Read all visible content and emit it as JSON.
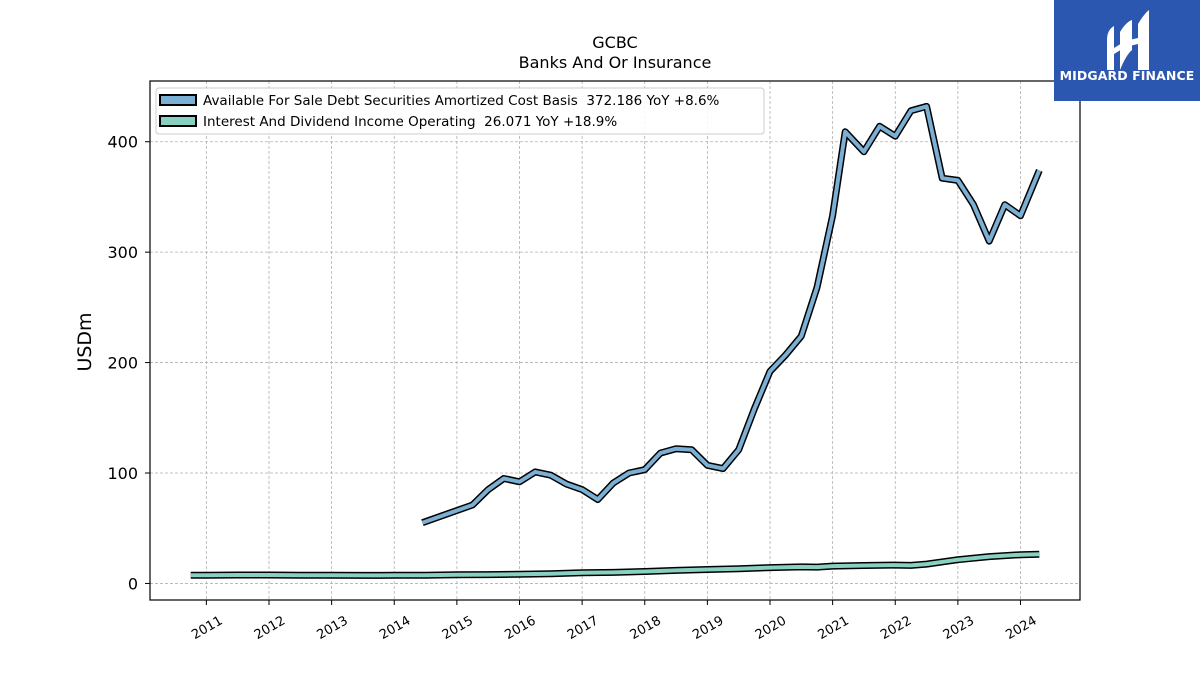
{
  "brand": {
    "name": "MIDGARD FINANCE",
    "bg_color": "#2b57b0",
    "mark_icon": "midgard-logo-mark"
  },
  "chart_data": {
    "type": "line",
    "title": "GCBC",
    "subtitle": "Banks And Or Insurance",
    "ylabel": "USDm",
    "xlabel": "",
    "xlim": [
      2010.1,
      2024.95
    ],
    "ylim": [
      -15,
      455
    ],
    "yticks": [
      0,
      100,
      200,
      300,
      400
    ],
    "xticks": [
      "2011",
      "2012",
      "2013",
      "2014",
      "2015",
      "2016",
      "2017",
      "2018",
      "2019",
      "2020",
      "2021",
      "2022",
      "2023",
      "2024"
    ],
    "grid": true,
    "legend_position": "top-left",
    "series": [
      {
        "name": "Available For Sale Debt Securities Amortized Cost Basis",
        "legend_label": "Available For Sale Debt Securities Amortized Cost Basis  372.186 YoY +8.6%",
        "color": "#7bafd4",
        "points": [
          [
            2014.45,
            55
          ],
          [
            2015.25,
            71
          ],
          [
            2015.5,
            85
          ],
          [
            2015.75,
            95
          ],
          [
            2016.0,
            92
          ],
          [
            2016.25,
            101
          ],
          [
            2016.5,
            98
          ],
          [
            2016.75,
            90
          ],
          [
            2017.0,
            85
          ],
          [
            2017.25,
            76
          ],
          [
            2017.5,
            91
          ],
          [
            2017.75,
            100
          ],
          [
            2018.0,
            103
          ],
          [
            2018.25,
            118
          ],
          [
            2018.5,
            122
          ],
          [
            2018.75,
            121
          ],
          [
            2019.0,
            107
          ],
          [
            2019.25,
            104
          ],
          [
            2019.5,
            121
          ],
          [
            2019.75,
            158
          ],
          [
            2020.0,
            192
          ],
          [
            2020.25,
            207
          ],
          [
            2020.5,
            224
          ],
          [
            2020.75,
            268
          ],
          [
            2021.0,
            333
          ],
          [
            2021.2,
            409
          ],
          [
            2021.5,
            391
          ],
          [
            2021.75,
            414
          ],
          [
            2022.0,
            405
          ],
          [
            2022.25,
            428
          ],
          [
            2022.5,
            432
          ],
          [
            2022.75,
            367
          ],
          [
            2023.0,
            365
          ],
          [
            2023.25,
            343
          ],
          [
            2023.5,
            310
          ],
          [
            2023.75,
            343
          ],
          [
            2024.0,
            333
          ],
          [
            2024.3,
            374
          ]
        ]
      },
      {
        "name": "Interest And Dividend Income Operating",
        "legend_label": "Interest And Dividend Income Operating  26.071 YoY +18.9%",
        "color": "#88d1c2",
        "points": [
          [
            2010.75,
            7.5
          ],
          [
            2011.0,
            7.5
          ],
          [
            2011.5,
            7.6
          ],
          [
            2012.0,
            7.6
          ],
          [
            2012.5,
            7.4
          ],
          [
            2013.0,
            7.5
          ],
          [
            2013.5,
            7.3
          ],
          [
            2014.0,
            7.4
          ],
          [
            2014.5,
            7.5
          ],
          [
            2015.0,
            7.8
          ],
          [
            2015.5,
            8.0
          ],
          [
            2016.0,
            8.4
          ],
          [
            2016.5,
            8.8
          ],
          [
            2017.0,
            9.6
          ],
          [
            2017.5,
            10.0
          ],
          [
            2018.0,
            10.8
          ],
          [
            2018.5,
            11.8
          ],
          [
            2019.0,
            12.6
          ],
          [
            2019.5,
            13.3
          ],
          [
            2020.0,
            14.3
          ],
          [
            2020.5,
            15.0
          ],
          [
            2020.75,
            14.8
          ],
          [
            2021.0,
            15.7
          ],
          [
            2021.5,
            16.2
          ],
          [
            2022.0,
            16.6
          ],
          [
            2022.25,
            16.3
          ],
          [
            2022.5,
            17.5
          ],
          [
            2023.0,
            21.5
          ],
          [
            2023.5,
            24.3
          ],
          [
            2024.0,
            26.0
          ],
          [
            2024.3,
            26.5
          ]
        ]
      }
    ]
  }
}
